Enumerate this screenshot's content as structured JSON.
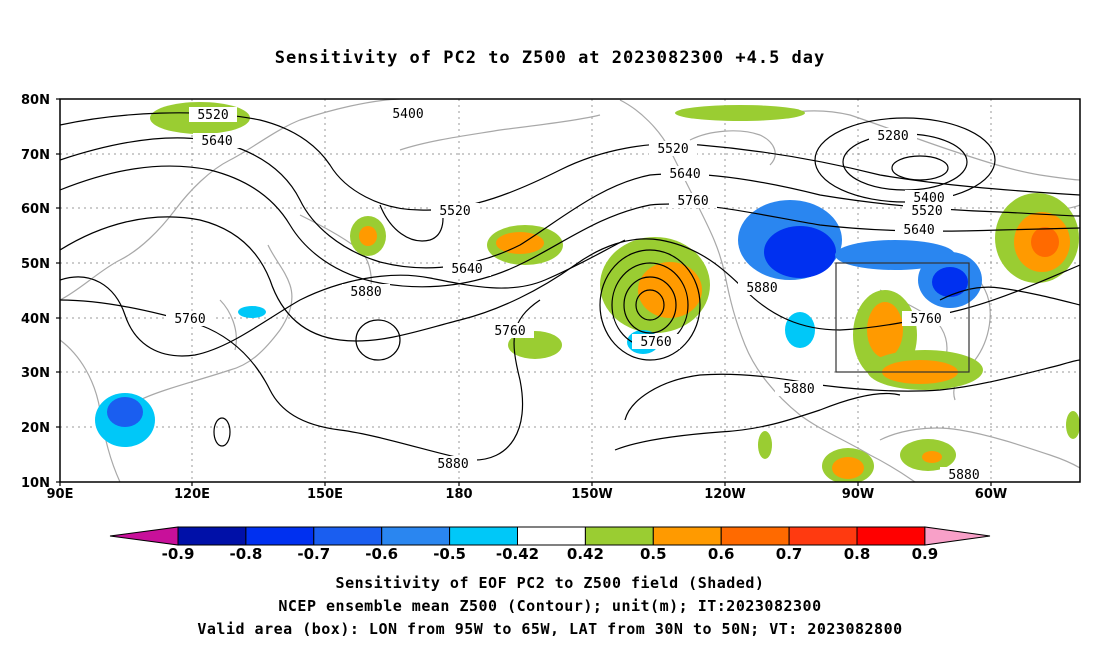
{
  "title": "Sensitivity of PC2 to Z500 at 2023082300 +4.5 day",
  "lat_ticks": [
    "80N",
    "70N",
    "60N",
    "50N",
    "40N",
    "30N",
    "20N",
    "10N"
  ],
  "lon_ticks": [
    "90E",
    "120E",
    "150E",
    "180",
    "150W",
    "120W",
    "90W",
    "60W"
  ],
  "contour_labels": [
    "5400",
    "5520",
    "5640",
    "5760",
    "5880",
    "5280"
  ],
  "colorbar": {
    "labels": [
      "-0.9",
      "-0.8",
      "-0.7",
      "-0.6",
      "-0.5",
      "-0.42",
      "0.42",
      "0.5",
      "0.6",
      "0.7",
      "0.8",
      "0.9"
    ],
    "colors": [
      "#c8109a",
      "#0010a8",
      "#0030f0",
      "#1a5ef0",
      "#2a86f0",
      "#00c8f8",
      "#ffffff",
      "#9acd32",
      "#ff9a00",
      "#ff6a00",
      "#ff3a10",
      "#ff0000",
      "#f8a0c8"
    ]
  },
  "captions": {
    "line1": "Sensitivity of EOF PC2 to Z500 field (Shaded)",
    "line2": "NCEP ensemble mean Z500 (Contour); unit(m); IT:2023082300",
    "line3": "Valid area (box): LON from 95W to 65W, LAT from 30N to 50N; VT: 2023082800"
  }
}
